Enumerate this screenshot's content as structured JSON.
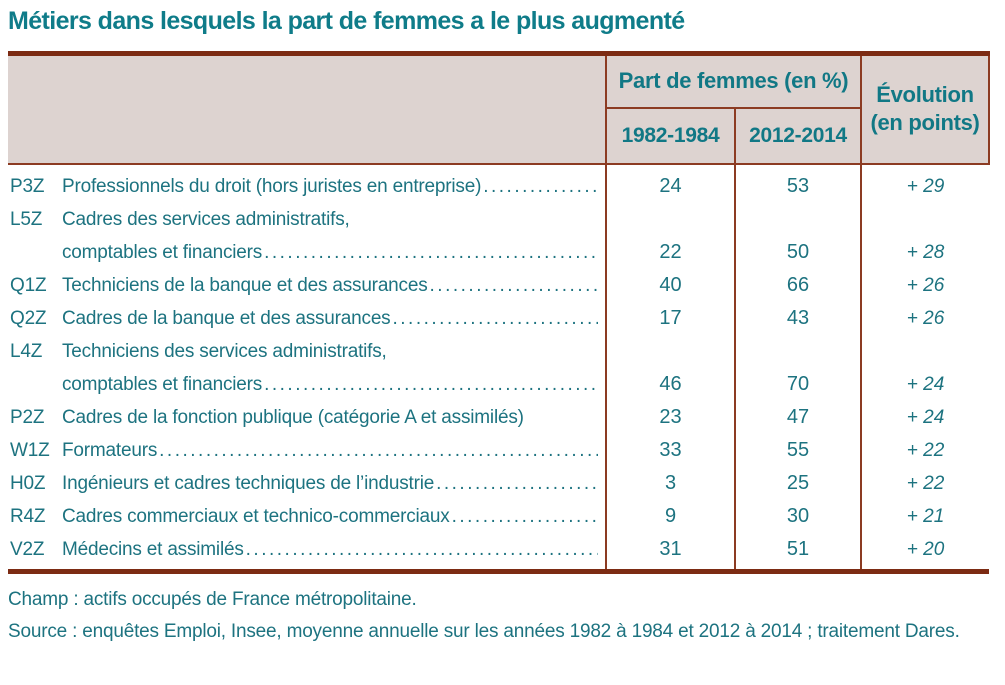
{
  "title": "Métiers dans lesquels la part de femmes a le plus augmenté",
  "colors": {
    "teal_text": "#1d7380",
    "teal_title": "#0f7c89",
    "maroon_thick_border": "#7c2b13",
    "maroon_thin_border": "#8c3b22",
    "header_background": "#ddd3d0"
  },
  "table": {
    "group_header": "Part de femmes (en %)",
    "col_1982": "1982-1984",
    "col_2012": "2012-2014",
    "evolution_line1": "Évolution",
    "evolution_line2": "(en points)",
    "rows": [
      {
        "code": "P3Z",
        "label": "Professionnels du droit (hors juristes en entreprise)",
        "v1": "24",
        "v2": "53",
        "evo": "+ 29"
      },
      {
        "code": "L5Z",
        "label": "Cadres des services administratifs,",
        "label2": "comptables et financiers",
        "v1": "22",
        "v2": "50",
        "evo": "+ 28"
      },
      {
        "code": "Q1Z",
        "label": "Techniciens de la banque et des assurances",
        "v1": "40",
        "v2": "66",
        "evo": "+ 26"
      },
      {
        "code": "Q2Z",
        "label": "Cadres de la banque et des assurances",
        "v1": "17",
        "v2": "43",
        "evo": "+ 26"
      },
      {
        "code": "L4Z",
        "label": "Techniciens des services administratifs,",
        "label2": "comptables et financiers",
        "v1": "46",
        "v2": "70",
        "evo": "+ 24"
      },
      {
        "code": "P2Z",
        "label": "Cadres de la fonction publique (catégorie A et assimilés)",
        "v1": "23",
        "v2": "47",
        "evo": "+ 24"
      },
      {
        "code": "W1Z",
        "label": "Formateurs",
        "v1": "33",
        "v2": "55",
        "evo": "+ 22"
      },
      {
        "code": "H0Z",
        "label": "Ingénieurs et cadres techniques de l’industrie",
        "v1": "3",
        "v2": "25",
        "evo": "+ 22"
      },
      {
        "code": "R4Z",
        "label": "Cadres commerciaux et technico-commerciaux",
        "v1": "9",
        "v2": "30",
        "evo": "+ 21"
      },
      {
        "code": "V2Z",
        "label": "Médecins et assimilés",
        "v1": "31",
        "v2": "51",
        "evo": "+ 20"
      }
    ]
  },
  "footer": {
    "champ": "Champ : actifs occupés de France métropolitaine.",
    "source": "Source : enquêtes Emploi, Insee, moyenne annuelle sur les années 1982 à 1984 et 2012 à 2014 ; traitement Dares."
  }
}
